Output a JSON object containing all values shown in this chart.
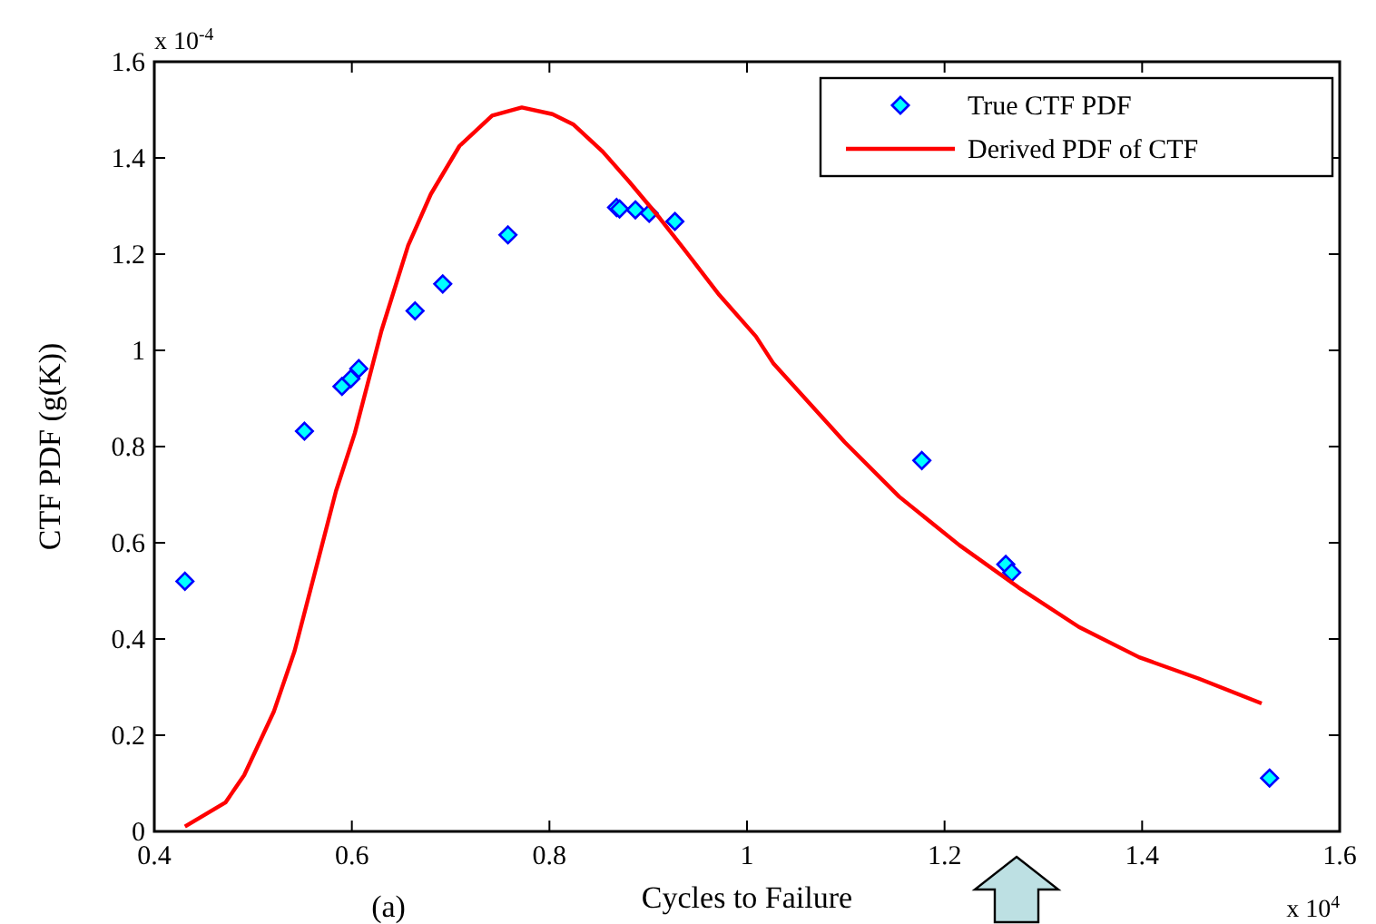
{
  "chart_data": {
    "type": "scatter",
    "xlabel": "Cycles to Failure",
    "ylabel": "CTF PDF (g(K))",
    "xlim": [
      0.4,
      1.6
    ],
    "xticks": [
      0.4,
      0.6,
      0.8,
      1,
      1.2,
      1.4,
      1.6
    ],
    "ylim": [
      0,
      1.6
    ],
    "yticks": [
      0,
      0.2,
      0.4,
      0.6,
      0.8,
      1,
      1.2,
      1.4,
      1.6
    ],
    "grid": false,
    "legend": "top right",
    "annotations": [
      "x 10$^{-4}$",
      "x 10$^{4}$",
      "(a)"
    ],
    "series": [
      {
        "name": "True CTF PDF",
        "marker": "diamond",
        "color": "#00ffff",
        "x": [
          0.431,
          0.552,
          0.59,
          0.599,
          0.607,
          0.664,
          0.692,
          0.758,
          0.868,
          0.871,
          0.887,
          0.901,
          0.927,
          1.177,
          1.262,
          1.268,
          1.529
        ],
        "values": [
          0.52,
          0.832,
          0.925,
          0.941,
          0.962,
          1.082,
          1.138,
          1.24,
          1.297,
          1.294,
          1.292,
          1.285,
          1.268,
          0.771,
          0.555,
          0.538,
          0.111
        ]
      },
      {
        "name": "Derived PDF of CTF",
        "type": "line",
        "marker": "none",
        "line_style": "solid",
        "color": "#ff0000",
        "x": [
          0.431,
          0.472,
          0.491,
          0.521,
          0.542,
          0.569,
          0.584,
          0.603,
          0.63,
          0.657,
          0.68,
          0.709,
          0.742,
          0.772,
          0.803,
          0.824,
          0.854,
          0.881,
          0.912,
          0.936,
          0.972,
          1.009,
          1.027,
          1.099,
          1.154,
          1.215,
          1.275,
          1.336,
          1.397,
          1.457,
          1.521
        ],
        "values": [
          0.01,
          0.06,
          0.117,
          0.249,
          0.375,
          0.589,
          0.708,
          0.828,
          1.041,
          1.218,
          1.325,
          1.425,
          1.488,
          1.505,
          1.491,
          1.47,
          1.413,
          1.35,
          1.274,
          1.211,
          1.115,
          1.029,
          0.972,
          0.809,
          0.696,
          0.595,
          0.507,
          0.425,
          0.362,
          0.318,
          0.266
        ]
      }
    ]
  }
}
